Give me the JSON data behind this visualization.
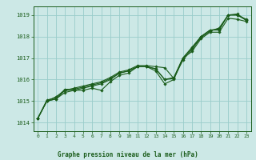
{
  "title": "Graphe pression niveau de la mer (hPa)",
  "xlabel_ticks": [
    0,
    1,
    2,
    3,
    4,
    5,
    6,
    7,
    8,
    9,
    10,
    11,
    12,
    13,
    14,
    15,
    16,
    17,
    18,
    19,
    20,
    21,
    22,
    23
  ],
  "yticks": [
    1014,
    1015,
    1016,
    1017,
    1018,
    1019
  ],
  "ylim": [
    1013.6,
    1019.4
  ],
  "xlim": [
    -0.5,
    23.5
  ],
  "bg_color": "#cce8e6",
  "grid_color": "#99ccca",
  "line_color": "#1a5c1a",
  "marker_color": "#1a5c1a",
  "text_color": "#1a5c1a",
  "series": [
    [
      1014.2,
      1015.0,
      1015.1,
      1015.5,
      1015.5,
      1015.6,
      1015.7,
      1015.8,
      1016.0,
      1016.3,
      1016.4,
      1016.6,
      1016.6,
      1016.5,
      1016.0,
      1016.1,
      1017.0,
      1017.5,
      1018.0,
      1018.3,
      1018.3,
      1019.0,
      1019.0,
      1018.8
    ],
    [
      1014.2,
      1015.0,
      1015.1,
      1015.4,
      1015.5,
      1015.5,
      1015.6,
      1015.5,
      1015.9,
      1016.2,
      1016.3,
      1016.6,
      1016.6,
      1016.4,
      1015.8,
      1016.0,
      1017.0,
      1017.3,
      1017.9,
      1018.2,
      1018.2,
      1018.85,
      1018.8,
      1018.7
    ],
    [
      1014.2,
      1015.0,
      1015.2,
      1015.5,
      1015.6,
      1015.7,
      1015.8,
      1015.9,
      1016.1,
      1016.35,
      1016.45,
      1016.65,
      1016.65,
      1016.6,
      1016.55,
      1016.05,
      1016.9,
      1017.4,
      1017.95,
      1018.25,
      1018.4,
      1019.0,
      1019.05,
      1018.75
    ],
    [
      1014.2,
      1015.05,
      1015.15,
      1015.55,
      1015.55,
      1015.65,
      1015.75,
      1015.85,
      1016.05,
      1016.3,
      1016.4,
      1016.6,
      1016.6,
      1016.5,
      1016.0,
      1016.05,
      1017.0,
      1017.45,
      1018.0,
      1018.3,
      1018.35,
      1019.0,
      1019.0,
      1018.75
    ]
  ]
}
